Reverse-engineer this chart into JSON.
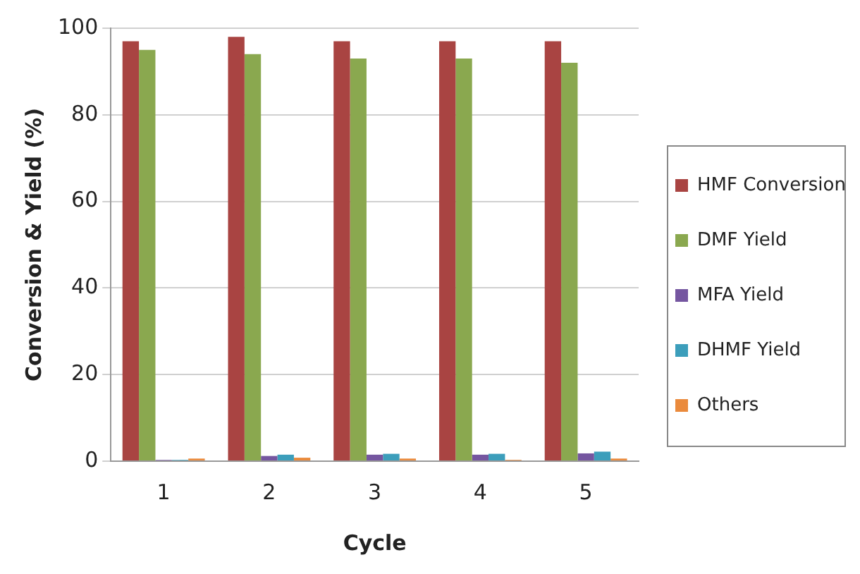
{
  "chart_data": {
    "type": "bar",
    "xlabel": "Cycle",
    "ylabel": "Conversion & Yield (%)",
    "categories": [
      "1",
      "2",
      "3",
      "4",
      "5"
    ],
    "series": [
      {
        "name": "HMF Conversion",
        "color": "#a94442",
        "values": [
          97,
          98,
          97,
          97,
          97
        ]
      },
      {
        "name": "DMF Yield",
        "color": "#8aa84f",
        "values": [
          95,
          94,
          93,
          93,
          92
        ]
      },
      {
        "name": "MFA Yield",
        "color": "#7556a0",
        "values": [
          0.3,
          1.2,
          1.5,
          1.5,
          1.8
        ]
      },
      {
        "name": "DHMF Yield",
        "color": "#3c9ebb",
        "values": [
          0.3,
          1.5,
          1.7,
          1.7,
          2.2
        ]
      },
      {
        "name": "Others",
        "color": "#ea8a3c",
        "values": [
          0.6,
          0.8,
          0.6,
          0.3,
          0.6
        ]
      }
    ],
    "ylim": [
      0,
      100
    ],
    "yticks": [
      0,
      20,
      40,
      60,
      80,
      100
    ],
    "grid": "y",
    "legend": "right"
  }
}
